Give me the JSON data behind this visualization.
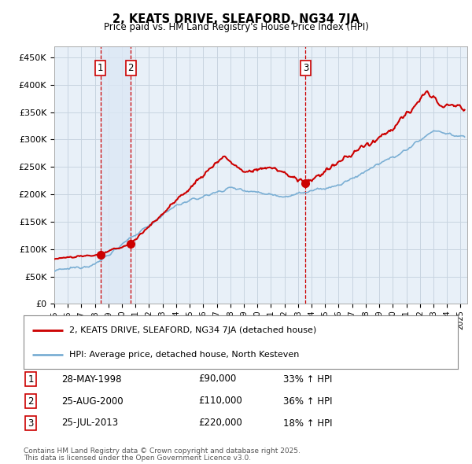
{
  "title": "2, KEATS DRIVE, SLEAFORD, NG34 7JA",
  "subtitle": "Price paid vs. HM Land Registry's House Price Index (HPI)",
  "ylabel_ticks": [
    "£0",
    "£50K",
    "£100K",
    "£150K",
    "£200K",
    "£250K",
    "£300K",
    "£350K",
    "£400K",
    "£450K"
  ],
  "ytick_values": [
    0,
    50000,
    100000,
    150000,
    200000,
    250000,
    300000,
    350000,
    400000,
    450000
  ],
  "ylim": [
    0,
    470000
  ],
  "xlim_start": 1995.0,
  "xlim_end": 2025.5,
  "sale_points": [
    {
      "num": 1,
      "date": "28-MAY-1998",
      "price": 90000,
      "x": 1998.4
    },
    {
      "num": 2,
      "date": "25-AUG-2000",
      "price": 110000,
      "x": 2000.65
    },
    {
      "num": 3,
      "date": "25-JUL-2013",
      "price": 220000,
      "x": 2013.56
    }
  ],
  "legend_line1": "2, KEATS DRIVE, SLEAFORD, NG34 7JA (detached house)",
  "legend_line2": "HPI: Average price, detached house, North Kesteven",
  "footer1": "Contains HM Land Registry data © Crown copyright and database right 2025.",
  "footer2": "This data is licensed under the Open Government Licence v3.0.",
  "table_rows": [
    {
      "num": "1",
      "date": "28-MAY-1998",
      "price": "£90,000",
      "change": "33% ↑ HPI"
    },
    {
      "num": "2",
      "date": "25-AUG-2000",
      "price": "£110,000",
      "change": "36% ↑ HPI"
    },
    {
      "num": "3",
      "date": "25-JUL-2013",
      "price": "£220,000",
      "change": "18% ↑ HPI"
    }
  ],
  "red_color": "#cc0000",
  "blue_color": "#7bafd4",
  "shade_color": "#dce8f5",
  "bg_color": "#e8f0f8",
  "grid_color": "#c8d4e0"
}
